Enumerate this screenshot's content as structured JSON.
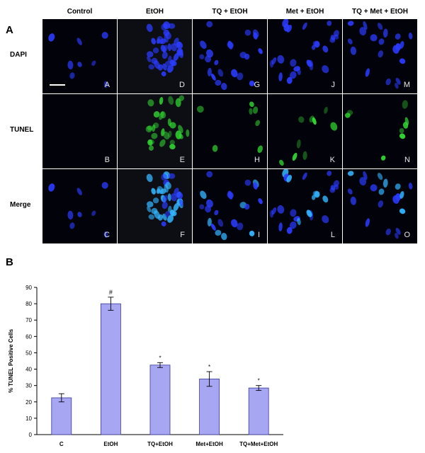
{
  "panel_a_label": "A",
  "panel_b_label": "B",
  "columns": [
    "Control",
    "EtOH",
    "TQ + EtOH",
    "Met + EtOH",
    "TQ + Met + EtOH"
  ],
  "rows": [
    "DAPI",
    "TUNEL",
    "Merge"
  ],
  "tile_letters": [
    [
      "A",
      "D",
      "G",
      "J",
      "M"
    ],
    [
      "B",
      "E",
      "H",
      "K",
      "N"
    ],
    [
      "C",
      "F",
      "I",
      "L",
      "O"
    ]
  ],
  "colors": {
    "dapi": "#2a3cff",
    "tunel": "#33dd33",
    "merge_bright": "#33b5ff",
    "bar_fill": "#a6a6f2",
    "bar_stroke": "#3a3a9a"
  },
  "chart_data": {
    "type": "bar",
    "categories": [
      "C",
      "EtOH",
      "TQ+EtOH",
      "Met+EtOH",
      "TQ+Met+EtOH"
    ],
    "values": [
      22.5,
      80,
      42.5,
      34,
      28.5
    ],
    "errors": [
      2.5,
      4,
      1.5,
      4.5,
      1.5
    ],
    "annotations": [
      "",
      "#",
      "*",
      "*",
      "*"
    ],
    "ylabel": "% TUNEL Positive Cells",
    "ylim": [
      0,
      90
    ],
    "yticks": [
      0,
      10,
      20,
      30,
      40,
      50,
      60,
      70,
      80,
      90
    ],
    "grid": false
  }
}
